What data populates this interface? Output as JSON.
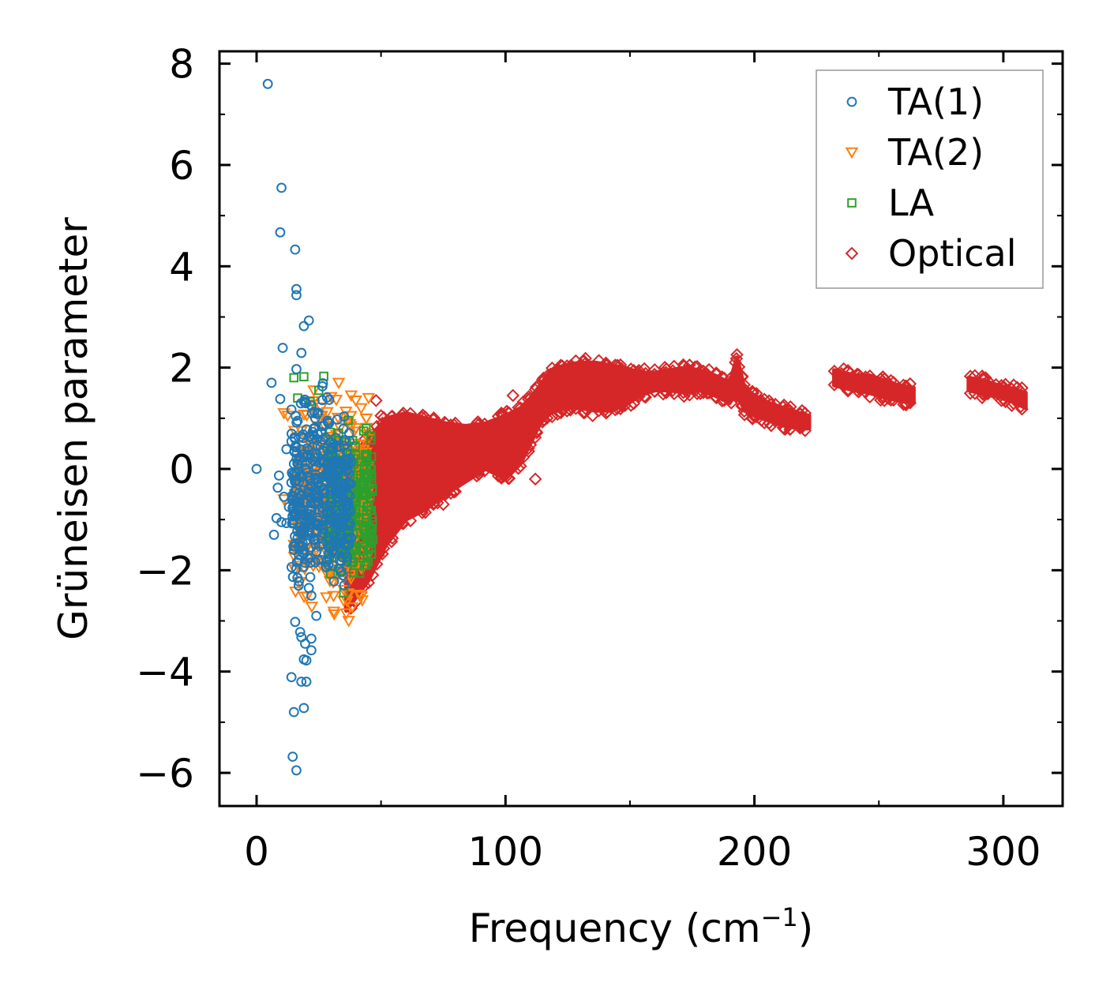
{
  "chart_data": {
    "type": "scatter",
    "title": "",
    "xlabel": "Frequency (cm",
    "xlabel_sup": "−1",
    "xlabel_suffix": ")",
    "ylabel": "Grüneisen parameter",
    "xlim": [
      -15,
      324
    ],
    "ylim": [
      -6.6,
      8.3
    ],
    "xticks": [
      0,
      100,
      200,
      300
    ],
    "xtick_labels": [
      "0",
      "100",
      "200",
      "300"
    ],
    "yticks": [
      -6,
      -4,
      -2,
      0,
      2,
      4,
      6,
      8
    ],
    "ytick_labels": [
      "−6",
      "−4",
      "−2",
      "0",
      "2",
      "4",
      "6",
      "8"
    ],
    "legend_position": "top-right",
    "grid": false,
    "series": [
      {
        "name": "TA(1)",
        "color": "#1f77b4",
        "marker": "circle",
        "points": [
          [
            0,
            0
          ],
          [
            4.5,
            7.6
          ],
          [
            10,
            5.55
          ],
          [
            9.5,
            4.67
          ],
          [
            15.5,
            4.33
          ],
          [
            16,
            3.55
          ],
          [
            16,
            3.43
          ],
          [
            21,
            2.93
          ],
          [
            19,
            2.82
          ],
          [
            10.5,
            2.39
          ],
          [
            18,
            2.29
          ],
          [
            16,
            1.97
          ],
          [
            6,
            1.7
          ],
          [
            9.5,
            1.38
          ],
          [
            14,
            1.17
          ],
          [
            19,
            1.33
          ],
          [
            22,
            1.25
          ],
          [
            16.5,
            0.95
          ],
          [
            20,
            0.78
          ],
          [
            12,
            0.39
          ],
          [
            15,
            0.1
          ],
          [
            9,
            -0.13
          ],
          [
            8.5,
            -0.37
          ],
          [
            14,
            -0.27
          ],
          [
            11,
            -0.55
          ],
          [
            13,
            -0.75
          ],
          [
            8,
            -0.97
          ],
          [
            10,
            -1.05
          ],
          [
            7,
            -1.3
          ],
          [
            12,
            -1.07
          ],
          [
            15,
            -1.6
          ],
          [
            17,
            -1.7
          ],
          [
            16,
            -1.97
          ],
          [
            19,
            -1.6
          ],
          [
            17,
            -2.22
          ],
          [
            21,
            -2.35
          ],
          [
            22,
            -2.5
          ],
          [
            24,
            -2.9
          ],
          [
            15.5,
            -3.02
          ],
          [
            17.5,
            -3.22
          ],
          [
            18,
            -3.32
          ],
          [
            19.5,
            -3.45
          ],
          [
            22,
            -3.35
          ],
          [
            22,
            -3.58
          ],
          [
            19,
            -3.76
          ],
          [
            20,
            -3.78
          ],
          [
            14,
            -4.11
          ],
          [
            18,
            -4.2
          ],
          [
            20,
            -4.2
          ],
          [
            15,
            -4.8
          ],
          [
            19,
            -4.72
          ],
          [
            14.5,
            -5.68
          ],
          [
            16,
            -5.95
          ]
        ],
        "dense_region": {
          "x": [
            14,
            38
          ],
          "y": [
            -2.6,
            1.6
          ],
          "count": 420
        }
      },
      {
        "name": "TA(2)",
        "color": "#ff7f0e",
        "marker": "triangle-down",
        "points": [
          [
            11,
            1.1
          ],
          [
            12.5,
            1.05
          ],
          [
            18,
            0.75
          ],
          [
            23,
            1.55
          ],
          [
            33,
            1.7
          ],
          [
            38,
            1.45
          ],
          [
            42,
            1.2
          ],
          [
            45,
            1.4
          ],
          [
            36,
            -2.85
          ],
          [
            37,
            -3.0
          ],
          [
            35,
            -2.6
          ],
          [
            11,
            -0.6
          ]
        ],
        "dense_region": {
          "x": [
            15,
            45
          ],
          "y": [
            -2.8,
            1.5
          ],
          "count": 420
        }
      },
      {
        "name": "LA",
        "color": "#2ca02c",
        "marker": "square",
        "points": [
          [
            15,
            1.8
          ],
          [
            19,
            1.82
          ],
          [
            27,
            1.83
          ],
          [
            25,
            1.55
          ],
          [
            16.5,
            1.4
          ],
          [
            35,
            -2.45
          ],
          [
            39,
            -2.05
          ],
          [
            38,
            -1.85
          ],
          [
            44,
            0.8
          ],
          [
            46,
            0.65
          ],
          [
            40,
            -1.6
          ],
          [
            21.5,
            1.33
          ]
        ],
        "dense_region": {
          "x": [
            28,
            47
          ],
          "y": [
            -2.5,
            0.9
          ],
          "count": 260
        }
      },
      {
        "name": "Optical",
        "color": "#d62728",
        "marker": "diamond",
        "points": [
          [
            38,
            -2.75
          ],
          [
            40,
            -2.62
          ],
          [
            48,
            1.35
          ],
          [
            50,
            1.05
          ],
          [
            52,
            0.75
          ],
          [
            56,
            -1.0
          ],
          [
            49,
            -1.7
          ],
          [
            70,
            0.75
          ],
          [
            75,
            -0.7
          ],
          [
            103,
            1.45
          ],
          [
            112,
            -0.2
          ],
          [
            135,
            1.05
          ],
          [
            148,
            1.25
          ],
          [
            235,
            1.88
          ],
          [
            250,
            1.68
          ],
          [
            262,
            1.5
          ],
          [
            300,
            1.6
          ]
        ],
        "band": {
          "x": [
            36,
            45,
            52,
            60,
            68,
            76,
            84,
            92,
            100,
            106,
            110,
            114,
            118,
            124,
            130,
            136,
            142,
            148,
            154,
            160,
            166,
            172,
            178,
            184,
            190,
            193,
            196,
            200,
            206,
            212,
            218,
            222,
            232,
            240,
            246,
            252,
            258,
            264,
            286,
            292,
            298,
            304,
            309
          ],
          "y_lo": [
            -2.8,
            -2.2,
            -1.5,
            -1.0,
            -0.8,
            -0.5,
            -0.25,
            0.0,
            -0.2,
            0.1,
            0.5,
            0.9,
            1.1,
            1.2,
            1.2,
            1.15,
            1.15,
            1.25,
            1.45,
            1.55,
            1.55,
            1.5,
            1.55,
            1.45,
            1.3,
            1.5,
            1.15,
            1.05,
            0.95,
            0.85,
            0.8,
            0.8,
            1.65,
            1.55,
            1.5,
            1.42,
            1.35,
            1.3,
            1.55,
            1.48,
            1.42,
            1.32,
            1.2
          ],
          "y_hi": [
            0.2,
            0.6,
            1.0,
            1.1,
            1.0,
            0.9,
            0.85,
            0.9,
            1.05,
            1.2,
            1.4,
            1.65,
            1.95,
            2.05,
            2.1,
            2.1,
            2.05,
            2.0,
            1.9,
            1.9,
            1.95,
            2.0,
            1.95,
            1.85,
            1.7,
            2.2,
            1.6,
            1.45,
            1.3,
            1.2,
            1.1,
            1.05,
            1.95,
            1.85,
            1.85,
            1.75,
            1.65,
            1.6,
            1.8,
            1.75,
            1.65,
            1.58,
            1.5
          ]
        },
        "band_gaps": [
          [
            222,
            232
          ],
          [
            264,
            286
          ]
        ]
      }
    ]
  }
}
